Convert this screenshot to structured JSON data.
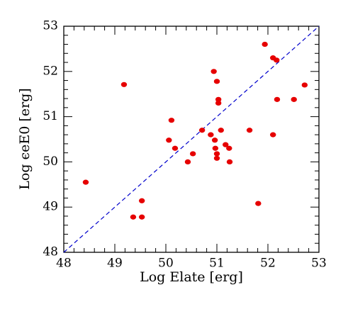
{
  "chart_data": {
    "type": "scatter",
    "xlabel": "Log Elate [erg]",
    "ylabel": "Log ϵeE0 [erg]",
    "xlim": [
      48,
      53
    ],
    "ylim": [
      48,
      53
    ],
    "xticks": [
      48,
      49,
      50,
      51,
      52,
      53
    ],
    "yticks": [
      48,
      49,
      50,
      51,
      52,
      53
    ],
    "diagonal": true,
    "diagonal_color": "#0000cc",
    "series": [
      {
        "color": "#e60000",
        "x": [
          48.43,
          49.18,
          49.36,
          49.53,
          49.53,
          50.06,
          50.11,
          50.18,
          50.43,
          50.53,
          50.71,
          50.88,
          50.94,
          50.96,
          51.0,
          50.97,
          51.0,
          51.0,
          51.03,
          51.03,
          51.08,
          51.17,
          51.24,
          51.25,
          51.64,
          51.81,
          51.94,
          52.1,
          52.17,
          52.1,
          52.18,
          52.51,
          52.72
        ],
        "y": [
          49.55,
          51.71,
          48.78,
          49.14,
          48.78,
          50.48,
          50.92,
          50.3,
          50.0,
          50.18,
          50.7,
          50.6,
          52.0,
          50.48,
          51.78,
          50.3,
          50.18,
          50.08,
          51.38,
          51.3,
          50.7,
          50.38,
          50.3,
          50.0,
          50.7,
          49.08,
          52.6,
          52.3,
          52.25,
          50.6,
          51.38,
          51.38,
          51.7
        ]
      }
    ]
  }
}
